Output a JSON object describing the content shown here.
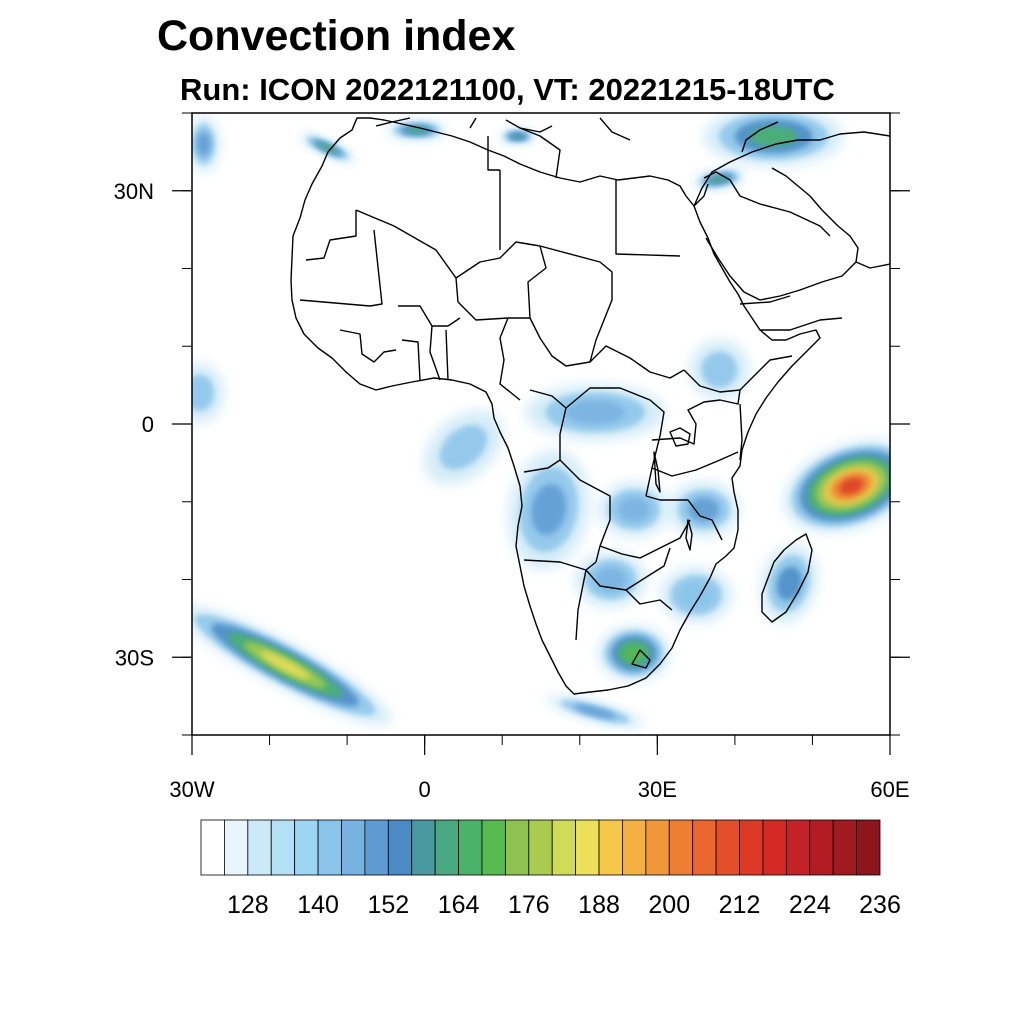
{
  "title": "Convection index",
  "subtitle": "Run: ICON 2022121100,  VT: 20221215-18UTC",
  "chart_data": {
    "type": "heatmap",
    "projection": "cylindrical-equidistant",
    "lon_range": [
      -30,
      60
    ],
    "lat_range": [
      -40,
      40
    ],
    "x_ticks": [
      {
        "value": -30,
        "label": "30W"
      },
      {
        "value": 0,
        "label": "0"
      },
      {
        "value": 30,
        "label": "30E"
      },
      {
        "value": 60,
        "label": "60E"
      }
    ],
    "y_ticks": [
      {
        "value": 30,
        "label": "30N"
      },
      {
        "value": 0,
        "label": "0"
      },
      {
        "value": -30,
        "label": "30S"
      }
    ],
    "colorbar": {
      "levels": [
        120,
        124,
        128,
        132,
        136,
        140,
        144,
        148,
        152,
        156,
        160,
        164,
        168,
        172,
        176,
        180,
        184,
        188,
        192,
        196,
        200,
        204,
        208,
        212,
        216,
        220,
        224,
        228,
        232,
        236
      ],
      "labels": [
        "128",
        "140",
        "152",
        "164",
        "176",
        "188",
        "200",
        "212",
        "224",
        "236"
      ],
      "label_values": [
        128,
        140,
        152,
        164,
        176,
        188,
        200,
        212,
        224,
        236
      ],
      "colors": [
        "#ffffff",
        "#e8f5fc",
        "#cce9f7",
        "#b4e0f5",
        "#9dd6f2",
        "#8ac4ea",
        "#78b2e0",
        "#5e9bd2",
        "#4a8bc4",
        "#489aa0",
        "#48a882",
        "#4ab36a",
        "#56ba4e",
        "#8ec24e",
        "#a8cc4e",
        "#d0dc58",
        "#ece05a",
        "#f6c84a",
        "#f4b040",
        "#f2963a",
        "#ee7e32",
        "#ea662c",
        "#e44e28",
        "#dc3a26",
        "#d42a26",
        "#c42228",
        "#b41c24",
        "#a01a20",
        "#8c161c"
      ]
    },
    "regions": [
      {
        "name": "nw-corner",
        "lon": -28.5,
        "lat": 36,
        "value": 150
      },
      {
        "name": "med-west",
        "lon": -1,
        "lat": 37.8,
        "value": 160
      },
      {
        "name": "sicily",
        "lon": 12,
        "lat": 37,
        "value": 158
      },
      {
        "name": "atlas",
        "lon": -12.5,
        "lat": 35.5,
        "value": 164
      },
      {
        "name": "turkey-east",
        "lon": 45,
        "lat": 37,
        "value": 164
      },
      {
        "name": "levant",
        "lon": 38,
        "lat": 31.5,
        "value": 160
      },
      {
        "name": "atlantic-equator",
        "lon": -29,
        "lat": 4,
        "value": 140
      },
      {
        "name": "gulf-of-guinea",
        "lon": 5,
        "lat": -3,
        "value": 140
      },
      {
        "name": "congo-basin",
        "lon": 22,
        "lat": 1.5,
        "value": 145
      },
      {
        "name": "angola",
        "lon": 16,
        "lat": -11,
        "value": 148
      },
      {
        "name": "zambia",
        "lon": 27,
        "lat": -11,
        "value": 145
      },
      {
        "name": "tanzania",
        "lon": 36,
        "lat": -11,
        "value": 150
      },
      {
        "name": "botswana",
        "lon": 24,
        "lat": -20,
        "value": 144
      },
      {
        "name": "mozambique",
        "lon": 35,
        "lat": -22,
        "value": 142
      },
      {
        "name": "madagascar",
        "lon": 47,
        "lat": -20.5,
        "value": 152
      },
      {
        "name": "south-africa-east",
        "lon": 27,
        "lat": -29.5,
        "value": 168
      },
      {
        "name": "southern-ocean-band",
        "lon": -18,
        "lat": -31,
        "value": 184
      },
      {
        "name": "indian-ocean-cell",
        "lon": 55,
        "lat": -8,
        "value": 212
      },
      {
        "name": "horn-of-africa",
        "lon": 38,
        "lat": 7,
        "value": 140
      },
      {
        "name": "agulhas",
        "lon": 22,
        "lat": -37,
        "value": 150
      }
    ]
  }
}
